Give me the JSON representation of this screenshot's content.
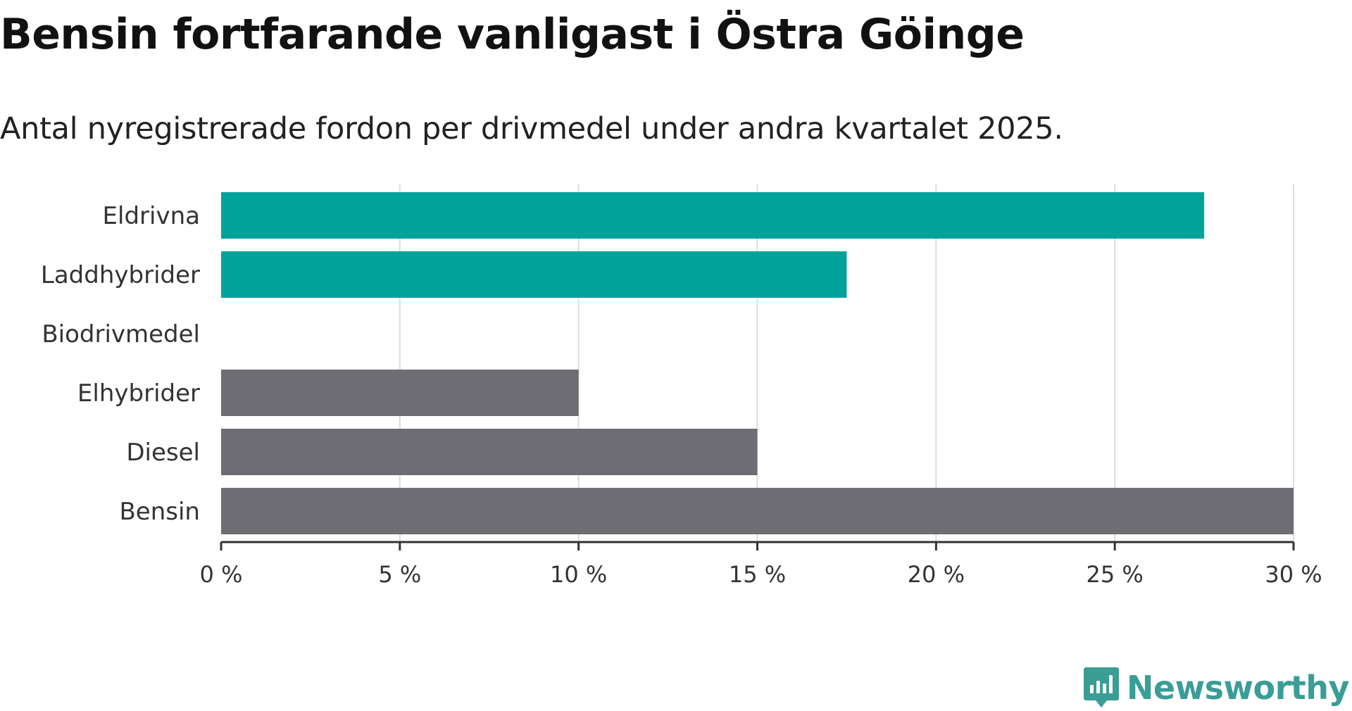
{
  "header": {
    "title": "Bensin fortfarande vanligast i Östra Göinge",
    "subtitle": "Antal nyregistrerade fordon per drivmedel under andra kvartalet 2025."
  },
  "brand": {
    "name": "Newsworthy",
    "icon": "newsworthy-logo-icon",
    "color": "#3a9d96"
  },
  "colors": {
    "highlight": "#00a39a",
    "other": "#6e6d73",
    "grid": "#dcdcdc",
    "axis": "#333333"
  },
  "chart_data": {
    "type": "bar",
    "orientation": "horizontal",
    "categories": [
      "Eldrivna",
      "Laddhybrider",
      "Biodrivmedel",
      "Elhybrider",
      "Diesel",
      "Bensin"
    ],
    "values": [
      27.5,
      17.5,
      0,
      10,
      15,
      30
    ],
    "highlighted": [
      true,
      true,
      true,
      false,
      false,
      false
    ],
    "xlim": [
      0,
      30
    ],
    "xticks": [
      0,
      5,
      10,
      15,
      20,
      25,
      30
    ],
    "xtick_labels": [
      "0 %",
      "5 %",
      "10 %",
      "15 %",
      "20 %",
      "25 %",
      "30 %"
    ],
    "unit": "%",
    "grid": true,
    "legend": "none"
  }
}
